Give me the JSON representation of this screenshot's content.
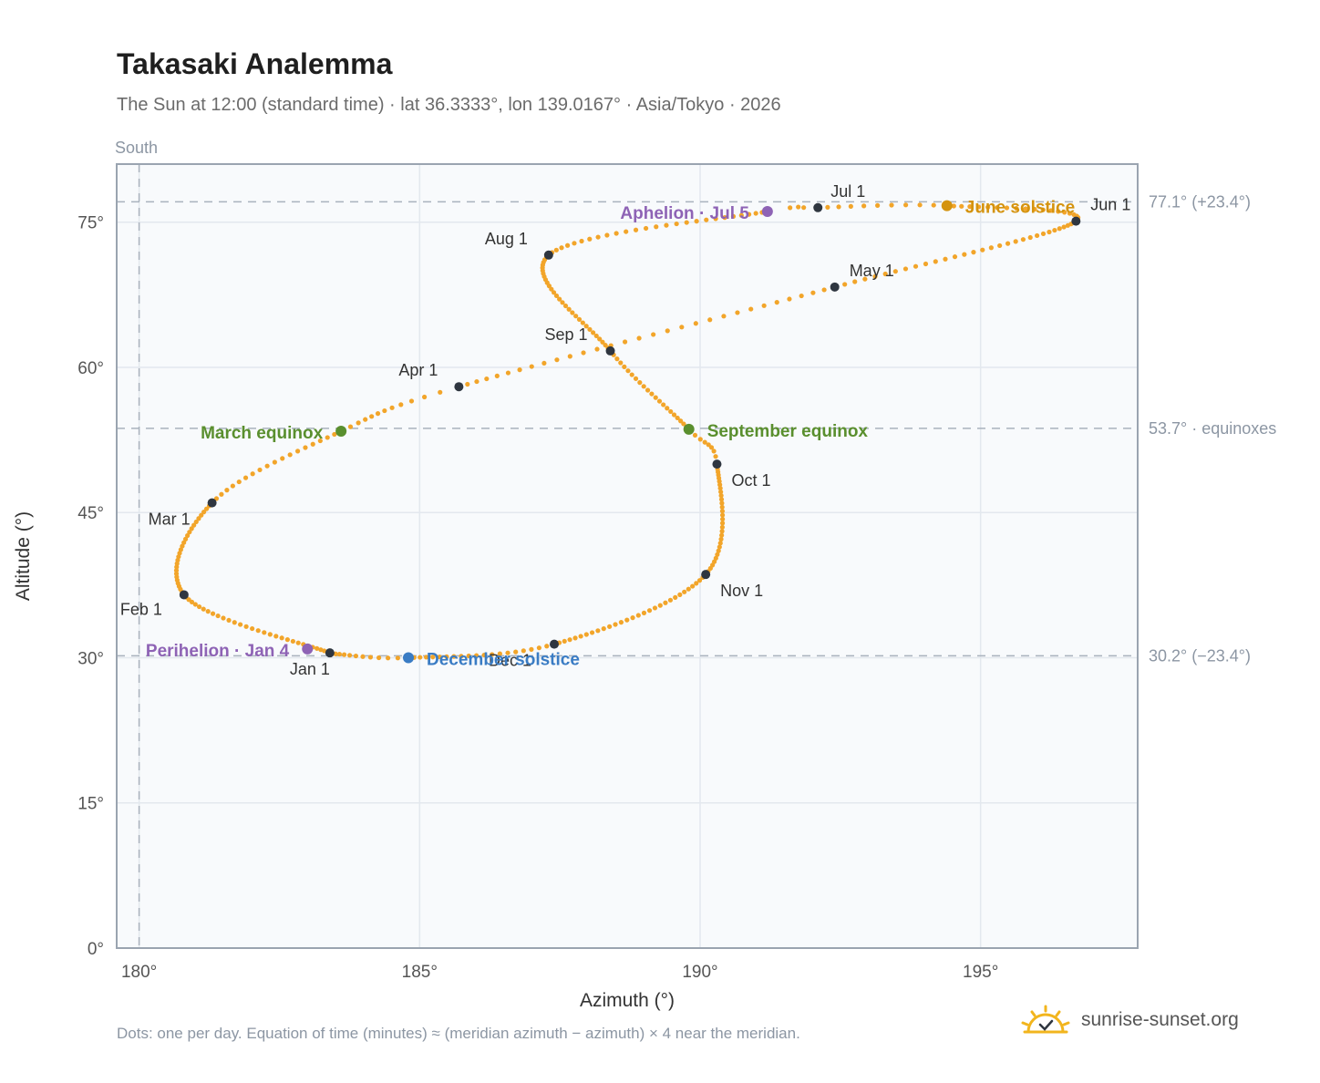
{
  "title": "Takasaki Analemma",
  "subtitle": "The Sun at 12:00 (standard time) · lat 36.3333°, lon 139.0167° · Asia/Tokyo · 2026",
  "footnote": "Dots: one per day. Equation of time (minutes) ≈ (meridian azimuth − azimuth) × 4 near the meridian.",
  "brand": "sunrise-sunset.org",
  "colors": {
    "curve": "#f2a52a",
    "month_marker": "#2f3640",
    "apsis": "#8e63b5",
    "equinox": "#5a8f2e",
    "june_solstice": "#d4930f",
    "december_solstice": "#3a7cc4",
    "grid": "#e3e8ee",
    "frame": "#9aa4b0",
    "plot_bg": "#f8fafc"
  },
  "chart_data": {
    "type": "scatter",
    "xlabel": "Azimuth (°)",
    "ylabel": "Altitude (°)",
    "xlim": [
      179.6,
      197.8
    ],
    "ylim": [
      0,
      81
    ],
    "x_ticks": [
      180,
      185,
      190,
      195
    ],
    "x_tick_labels": [
      "180°",
      "185°",
      "190°",
      "195°"
    ],
    "y_ticks": [
      0,
      15,
      30,
      45,
      60,
      75
    ],
    "y_tick_labels": [
      "0°",
      "15°",
      "30°",
      "45°",
      "60°",
      "75°"
    ],
    "grid": true,
    "meridian": {
      "azimuth": 180,
      "label": "South"
    },
    "reference_lines": [
      {
        "altitude": 77.1,
        "label": "77.1° (+23.4°)"
      },
      {
        "altitude": 53.7,
        "label": "53.7° · equinoxes"
      },
      {
        "altitude": 30.2,
        "label": "30.2° (−23.4°)"
      }
    ],
    "curve_anchors": [
      {
        "doy": 1,
        "az": 183.4,
        "alt": 30.5
      },
      {
        "doy": 32,
        "az": 180.8,
        "alt": 36.5
      },
      {
        "doy": 60,
        "az": 181.3,
        "alt": 46.0
      },
      {
        "doy": 79,
        "az": 183.6,
        "alt": 53.4
      },
      {
        "doy": 91,
        "az": 185.7,
        "alt": 58.0
      },
      {
        "doy": 121,
        "az": 192.4,
        "alt": 68.3
      },
      {
        "doy": 152,
        "az": 196.7,
        "alt": 75.1
      },
      {
        "doy": 172,
        "az": 194.4,
        "alt": 76.7
      },
      {
        "doy": 182,
        "az": 192.1,
        "alt": 76.5
      },
      {
        "doy": 186,
        "az": 191.2,
        "alt": 76.1
      },
      {
        "doy": 213,
        "az": 187.3,
        "alt": 71.6
      },
      {
        "doy": 244,
        "az": 188.4,
        "alt": 61.7
      },
      {
        "doy": 266,
        "az": 189.8,
        "alt": 53.6
      },
      {
        "doy": 274,
        "az": 190.3,
        "alt": 50.0
      },
      {
        "doy": 305,
        "az": 190.1,
        "alt": 38.6
      },
      {
        "doy": 335,
        "az": 187.4,
        "alt": 31.4
      },
      {
        "doy": 355,
        "az": 184.8,
        "alt": 30.0
      },
      {
        "doy": 365,
        "az": 183.5,
        "alt": 30.4
      }
    ],
    "month_markers": [
      {
        "label": "Jan 1",
        "az": 183.4,
        "alt": 30.5,
        "lx": -44,
        "ly": 24
      },
      {
        "label": "Feb 1",
        "az": 180.8,
        "alt": 36.5,
        "lx": -70,
        "ly": 22
      },
      {
        "label": "Mar 1",
        "az": 181.3,
        "alt": 46.0,
        "lx": -70,
        "ly": 24
      },
      {
        "label": "Apr 1",
        "az": 185.7,
        "alt": 58.0,
        "lx": -66,
        "ly": -12
      },
      {
        "label": "May 1",
        "az": 192.4,
        "alt": 68.3,
        "lx": 16,
        "ly": -12
      },
      {
        "label": "Jun 1",
        "az": 196.7,
        "alt": 75.1,
        "lx": 16,
        "ly": -12
      },
      {
        "label": "Jul 1",
        "az": 192.1,
        "alt": 76.5,
        "lx": 14,
        "ly": -12
      },
      {
        "label": "Aug 1",
        "az": 187.3,
        "alt": 71.6,
        "lx": -70,
        "ly": -12
      },
      {
        "label": "Sep 1",
        "az": 188.4,
        "alt": 61.7,
        "lx": -72,
        "ly": -12
      },
      {
        "label": "Oct 1",
        "az": 190.3,
        "alt": 50.0,
        "lx": 16,
        "ly": 24
      },
      {
        "label": "Nov 1",
        "az": 190.1,
        "alt": 38.6,
        "lx": 16,
        "ly": 24
      },
      {
        "label": "Dec 1",
        "az": 187.4,
        "alt": 31.4,
        "lx": -72,
        "ly": 24
      }
    ],
    "events": [
      {
        "label": "Perihelion · Jan 4",
        "az": 183.0,
        "alt": 30.9,
        "color": "#8e63b5",
        "anchor": "end",
        "lx": -20,
        "ly": 8
      },
      {
        "label": "March equinox",
        "az": 183.6,
        "alt": 53.4,
        "color": "#5a8f2e",
        "anchor": "end",
        "lx": -20,
        "ly": 8
      },
      {
        "label": "June solstice",
        "az": 194.4,
        "alt": 76.7,
        "color": "#d4930f",
        "anchor": "start",
        "lx": 20,
        "ly": 8
      },
      {
        "label": "Aphelion · Jul 5",
        "az": 191.2,
        "alt": 76.1,
        "color": "#8e63b5",
        "anchor": "end",
        "lx": -20,
        "ly": 8
      },
      {
        "label": "September equinox",
        "az": 189.8,
        "alt": 53.6,
        "color": "#5a8f2e",
        "anchor": "start",
        "lx": 20,
        "ly": 8
      },
      {
        "label": "December solstice",
        "az": 184.8,
        "alt": 30.0,
        "color": "#3a7cc4",
        "anchor": "start",
        "lx": 20,
        "ly": 8
      }
    ]
  }
}
